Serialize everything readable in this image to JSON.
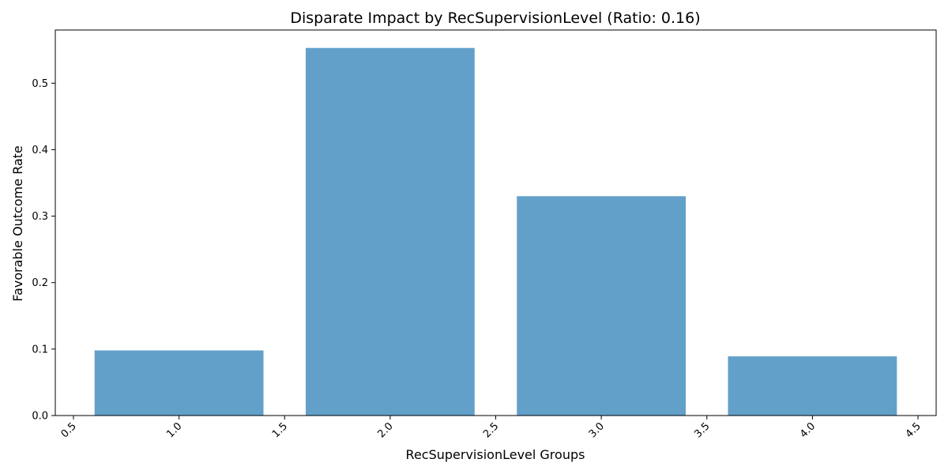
{
  "chart_data": {
    "type": "bar",
    "title": "Disparate Impact by RecSupervisionLevel (Ratio: 0.16)",
    "xlabel": "RecSupervisionLevel Groups",
    "ylabel": "Favorable Outcome Rate",
    "x": [
      1.0,
      2.0,
      3.0,
      4.0
    ],
    "values": [
      0.098,
      0.553,
      0.33,
      0.089
    ],
    "bar_width": 0.8,
    "xlim": [
      0.414,
      4.586
    ],
    "ylim": [
      0,
      0.58
    ],
    "xticks": [
      "0.5",
      "1.0",
      "1.5",
      "2.0",
      "2.5",
      "3.0",
      "3.5",
      "4.0",
      "4.5"
    ],
    "xtick_values": [
      0.5,
      1.0,
      1.5,
      2.0,
      2.5,
      3.0,
      3.5,
      4.0,
      4.5
    ],
    "yticks": [
      "0.0",
      "0.1",
      "0.2",
      "0.3",
      "0.4",
      "0.5"
    ],
    "ytick_values": [
      0.0,
      0.1,
      0.2,
      0.3,
      0.4,
      0.5
    ],
    "bar_color": "#62a0ca",
    "grid": false,
    "legend": "none"
  }
}
